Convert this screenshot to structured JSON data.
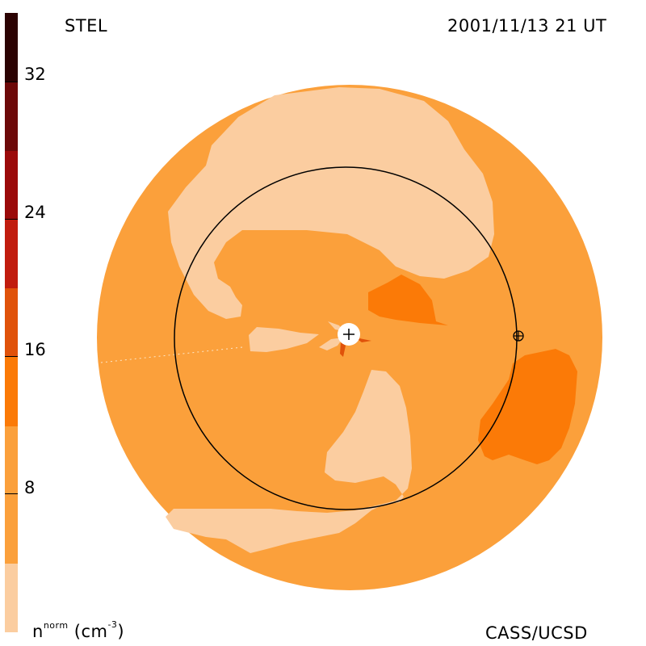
{
  "header": {
    "instrument": "STEL",
    "datetime": "2001/11/13 21 UT"
  },
  "footer": {
    "credit": "CASS/UCSD",
    "quantity": "n",
    "quantity_sup": "norm",
    "unit_open": "(cm",
    "unit_sup": "-3",
    "unit_close": ")"
  },
  "colorbar": {
    "ticks": [
      "32",
      "24",
      "16",
      "8"
    ],
    "tick_values": [
      32,
      24,
      16,
      8
    ],
    "range": [
      0,
      36
    ],
    "colors": [
      "#fbcda0",
      "#fba03b",
      "#fb7a07",
      "#e0520a",
      "#c11c0e",
      "#9b0a0a",
      "#6d0909",
      "#2c0303"
    ]
  },
  "map": {
    "background_color": "#fba03b",
    "light_region_color": "#fbcda0",
    "dense_region_color": "#fb7a07",
    "sun_marker": "+",
    "earth_marker": "⊕"
  }
}
